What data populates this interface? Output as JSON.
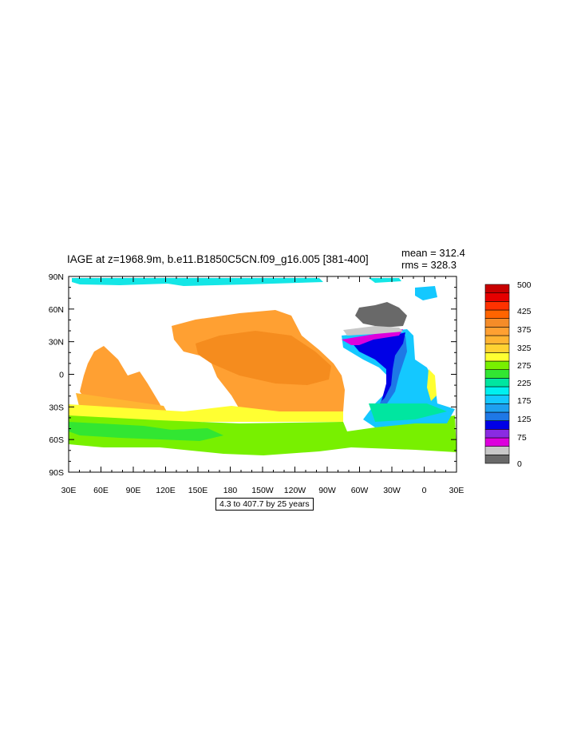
{
  "title": "IAGE at z=1968.9m, b.e11.B1850C5CN.f09_g16.005 [381-400]",
  "stats": {
    "mean_label": "mean = ",
    "mean": "312.4",
    "rms_label": "rms = ",
    "rms": "328.3"
  },
  "caption": "4.3 to 407.7 by 25 years",
  "lat_ticks": [
    "90N",
    "60N",
    "30N",
    "0",
    "30S",
    "60S",
    "90S"
  ],
  "lon_ticks": [
    "30E",
    "60E",
    "90E",
    "120E",
    "150E",
    "180",
    "150W",
    "120W",
    "90W",
    "60W",
    "30W",
    "0",
    "30E"
  ],
  "colorbar": {
    "labels": [
      "500",
      "425",
      "375",
      "325",
      "275",
      "225",
      "175",
      "125",
      "75",
      "0"
    ],
    "colors": [
      "#696969",
      "#c8c8c8",
      "#dd00dd",
      "#8a2be2",
      "#0000e6",
      "#1e78e6",
      "#1ea0f0",
      "#14c8ff",
      "#00f0f0",
      "#00e6a0",
      "#32e632",
      "#78f000",
      "#ffff32",
      "#ffd232",
      "#ffb432",
      "#ffa032",
      "#f58c28",
      "#ff6400",
      "#ff3200",
      "#e60000",
      "#c80000"
    ]
  },
  "map_colors": {
    "land": "#ffffff",
    "pacific_old": "#f58c1e",
    "pacific": "#ffa032",
    "indian": "#ffa032",
    "southern": "#78f000",
    "arctic": "#14e6e6",
    "nadw_core": "#0000e6",
    "nadw_edge": "#dd00dd"
  }
}
